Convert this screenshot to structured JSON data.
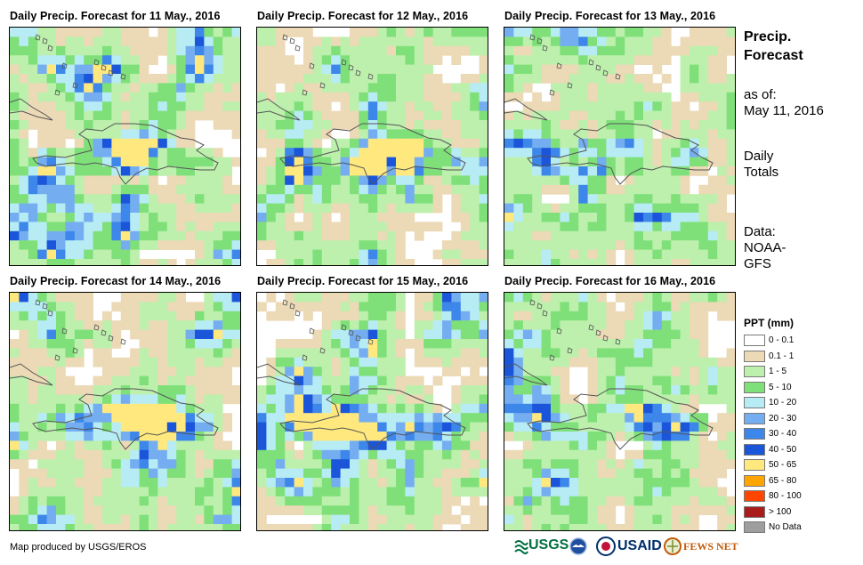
{
  "panels": [
    {
      "title": "Daily Precip. Forecast for 11 May., 2016"
    },
    {
      "title": "Daily Precip. Forecast for 12 May., 2016"
    },
    {
      "title": "Daily Precip. Forecast for 13 May., 2016"
    },
    {
      "title": "Daily Precip. Forecast for 14 May., 2016"
    },
    {
      "title": "Daily Precip. Forecast for 15 May., 2016"
    },
    {
      "title": "Daily Precip. Forecast for 16 May., 2016"
    }
  ],
  "side": {
    "title_line1": "Precip.",
    "title_line2": "Forecast",
    "asof_line1": "as of:",
    "asof_line2": "May 11, 2016",
    "totals_line1": "Daily",
    "totals_line2": "Totals",
    "data_line1": "Data:",
    "data_line2": "NOAA-",
    "data_line3": "GFS"
  },
  "legend": {
    "title": "PPT (mm)",
    "items": [
      {
        "label": "0 - 0.1",
        "color": "#ffffff"
      },
      {
        "label": "0.1 - 1",
        "color": "#ecd9b6"
      },
      {
        "label": "1 - 5",
        "color": "#bdf0ad"
      },
      {
        "label": "5 - 10",
        "color": "#7fe07a"
      },
      {
        "label": "10 - 20",
        "color": "#b7ecf5"
      },
      {
        "label": "20 - 30",
        "color": "#74aef0"
      },
      {
        "label": "30 - 40",
        "color": "#3d86ea"
      },
      {
        "label": "40 - 50",
        "color": "#1b55d9"
      },
      {
        "label": "50 - 65",
        "color": "#ffe97f"
      },
      {
        "label": "65 - 80",
        "color": "#ffa500"
      },
      {
        "label": "80 - 100",
        "color": "#ff4500"
      },
      {
        "label": "> 100",
        "color": "#a81c1c"
      },
      {
        "label": "No Data",
        "color": "#9e9e9e"
      }
    ]
  },
  "credit": "Map produced by USGS/EROS",
  "logos": {
    "usgs": "USGS",
    "usaid": "USAID",
    "fewsnet": "FEWS NET"
  }
}
